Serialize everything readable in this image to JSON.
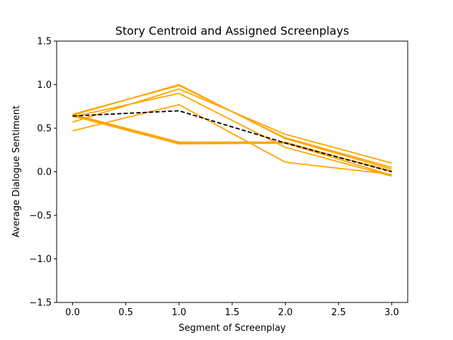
{
  "chart_data": {
    "type": "line",
    "title": "Story Centroid and Assigned Screenplays",
    "xlabel": "Segment of Screenplay",
    "ylabel": "Average Dialogue Sentiment",
    "x": [
      0,
      1,
      2,
      3
    ],
    "xlim": [
      -0.15,
      3.15
    ],
    "ylim": [
      -1.5,
      1.5
    ],
    "xticks": [
      "0.0",
      "0.5",
      "1.0",
      "1.5",
      "2.0",
      "2.5",
      "3.0"
    ],
    "xtick_values": [
      0,
      0.5,
      1,
      1.5,
      2,
      2.5,
      3
    ],
    "yticks": [
      "−1.5",
      "−1.0",
      "−0.5",
      "0.0",
      "0.5",
      "1.0",
      "1.5"
    ],
    "ytick_values": [
      -1.5,
      -1.0,
      -0.5,
      0.0,
      0.5,
      1.0,
      1.5
    ],
    "grid": false,
    "series_color": "#FFA500",
    "centroid_color": "#000000",
    "series": [
      {
        "values": [
          0.66,
          0.99,
          0.39,
          0.05
        ]
      },
      {
        "values": [
          0.65,
          1.0,
          0.38,
          0.03
        ]
      },
      {
        "values": [
          0.57,
          0.95,
          0.43,
          0.1
        ]
      },
      {
        "values": [
          0.63,
          0.9,
          0.28,
          -0.05
        ]
      },
      {
        "values": [
          0.47,
          0.77,
          0.11,
          -0.03
        ]
      },
      {
        "values": [
          0.66,
          0.34,
          0.34,
          0.0
        ]
      },
      {
        "values": [
          0.65,
          0.33,
          0.33,
          0.01
        ]
      },
      {
        "values": [
          0.64,
          0.32,
          0.33,
          -0.04
        ]
      }
    ],
    "centroid": {
      "values": [
        0.64,
        0.7,
        0.33,
        0.0
      ],
      "style": "dashed"
    }
  }
}
